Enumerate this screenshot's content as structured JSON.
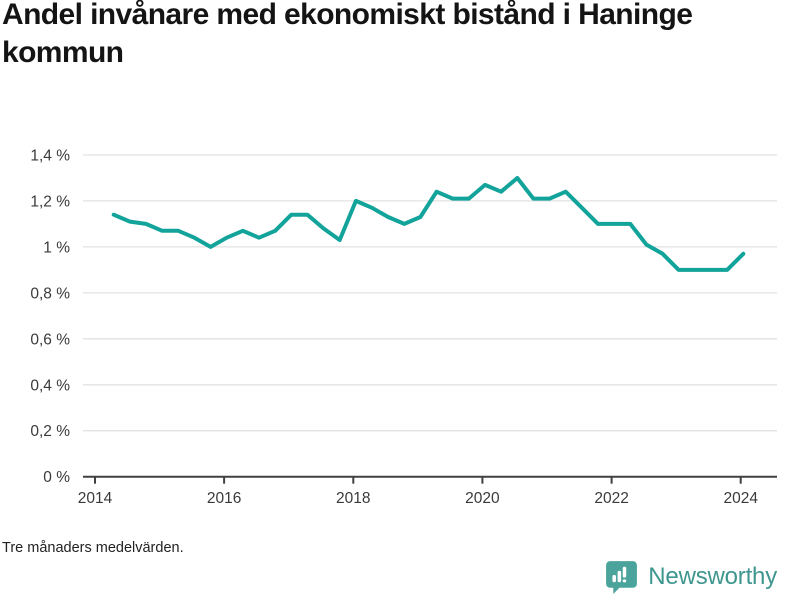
{
  "title": "Andel invånare med ekonomiskt bistånd i Haninge kommun",
  "footnote": "Tre månaders medelvärden.",
  "brand": {
    "name": "Newsworthy",
    "text_color": "#3E968E",
    "icon_color": "#4BA49B",
    "icon": "newsworthy-logo-icon"
  },
  "chart_data": {
    "type": "line",
    "title": "Andel invånare med ekonomiskt bistånd i Haninge kommun",
    "note": "Tre månaders medelvärden.",
    "unit": "%",
    "decimal_separator": ",",
    "grid": true,
    "legend": "none",
    "line_color": "#12A39A",
    "grid_color": "#E2E2E2",
    "axis_color": "#404040",
    "tick_label_color": "#3A3A3A",
    "x_axis": {
      "range": [
        2013.8,
        2024.56
      ],
      "ticks": [
        {
          "label": "2014",
          "value": 2014
        },
        {
          "label": "2016",
          "value": 2016
        },
        {
          "label": "2018",
          "value": 2018
        },
        {
          "label": "2020",
          "value": 2020
        },
        {
          "label": "2022",
          "value": 2022
        },
        {
          "label": "2024",
          "value": 2024
        }
      ]
    },
    "y_axis": {
      "range": [
        0,
        1.4
      ],
      "ticks": [
        {
          "label": "1,4 %",
          "value": 1.4
        },
        {
          "label": "1,2 %",
          "value": 1.2
        },
        {
          "label": "1 %",
          "value": 1.0
        },
        {
          "label": "0,8 %",
          "value": 0.8
        },
        {
          "label": "0,6 %",
          "value": 0.6
        },
        {
          "label": "0,4 %",
          "value": 0.4
        },
        {
          "label": "0,2 %",
          "value": 0.2
        },
        {
          "label": "0 %",
          "value": 0
        }
      ]
    },
    "series": [
      {
        "name": "Andel invånare med ekonomiskt bistånd",
        "points": [
          {
            "period": "2014-Q2",
            "t": 2014.29,
            "value": 1.14
          },
          {
            "period": "2014-Q3",
            "t": 2014.54,
            "value": 1.11
          },
          {
            "period": "2014-Q4",
            "t": 2014.79,
            "value": 1.1
          },
          {
            "period": "2015-Q1",
            "t": 2015.04,
            "value": 1.07
          },
          {
            "period": "2015-Q2",
            "t": 2015.29,
            "value": 1.07
          },
          {
            "period": "2015-Q3",
            "t": 2015.54,
            "value": 1.04
          },
          {
            "period": "2015-Q4",
            "t": 2015.79,
            "value": 1.0
          },
          {
            "period": "2016-Q1",
            "t": 2016.04,
            "value": 1.04
          },
          {
            "period": "2016-Q2",
            "t": 2016.29,
            "value": 1.07
          },
          {
            "period": "2016-Q3",
            "t": 2016.54,
            "value": 1.04
          },
          {
            "period": "2016-Q4",
            "t": 2016.79,
            "value": 1.07
          },
          {
            "period": "2017-Q1",
            "t": 2017.04,
            "value": 1.14
          },
          {
            "period": "2017-Q2",
            "t": 2017.29,
            "value": 1.14
          },
          {
            "period": "2017-Q3",
            "t": 2017.54,
            "value": 1.08
          },
          {
            "period": "2017-Q4",
            "t": 2017.79,
            "value": 1.03
          },
          {
            "period": "2018-Q1",
            "t": 2018.04,
            "value": 1.2
          },
          {
            "period": "2018-Q2",
            "t": 2018.29,
            "value": 1.17
          },
          {
            "period": "2018-Q3",
            "t": 2018.54,
            "value": 1.13
          },
          {
            "period": "2018-Q4",
            "t": 2018.79,
            "value": 1.1
          },
          {
            "period": "2019-Q1",
            "t": 2019.04,
            "value": 1.13
          },
          {
            "period": "2019-Q2",
            "t": 2019.29,
            "value": 1.24
          },
          {
            "period": "2019-Q3",
            "t": 2019.54,
            "value": 1.21
          },
          {
            "period": "2019-Q4",
            "t": 2019.79,
            "value": 1.21
          },
          {
            "period": "2020-Q1",
            "t": 2020.04,
            "value": 1.27
          },
          {
            "period": "2020-Q2",
            "t": 2020.29,
            "value": 1.24
          },
          {
            "period": "2020-Q3",
            "t": 2020.54,
            "value": 1.3
          },
          {
            "period": "2020-Q4",
            "t": 2020.79,
            "value": 1.21
          },
          {
            "period": "2021-Q1",
            "t": 2021.04,
            "value": 1.21
          },
          {
            "period": "2021-Q2",
            "t": 2021.29,
            "value": 1.24
          },
          {
            "period": "2021-Q3",
            "t": 2021.54,
            "value": 1.17
          },
          {
            "period": "2021-Q4",
            "t": 2021.79,
            "value": 1.1
          },
          {
            "period": "2022-Q1",
            "t": 2022.04,
            "value": 1.1
          },
          {
            "period": "2022-Q2",
            "t": 2022.29,
            "value": 1.1
          },
          {
            "period": "2022-Q3",
            "t": 2022.54,
            "value": 1.01
          },
          {
            "period": "2022-Q4",
            "t": 2022.79,
            "value": 0.97
          },
          {
            "period": "2023-Q1",
            "t": 2023.04,
            "value": 0.9
          },
          {
            "period": "2023-Q2",
            "t": 2023.29,
            "value": 0.9
          },
          {
            "period": "2023-Q3",
            "t": 2023.54,
            "value": 0.9
          },
          {
            "period": "2023-Q4",
            "t": 2023.79,
            "value": 0.9
          },
          {
            "period": "2024-Q1",
            "t": 2024.04,
            "value": 0.97
          }
        ]
      }
    ]
  }
}
